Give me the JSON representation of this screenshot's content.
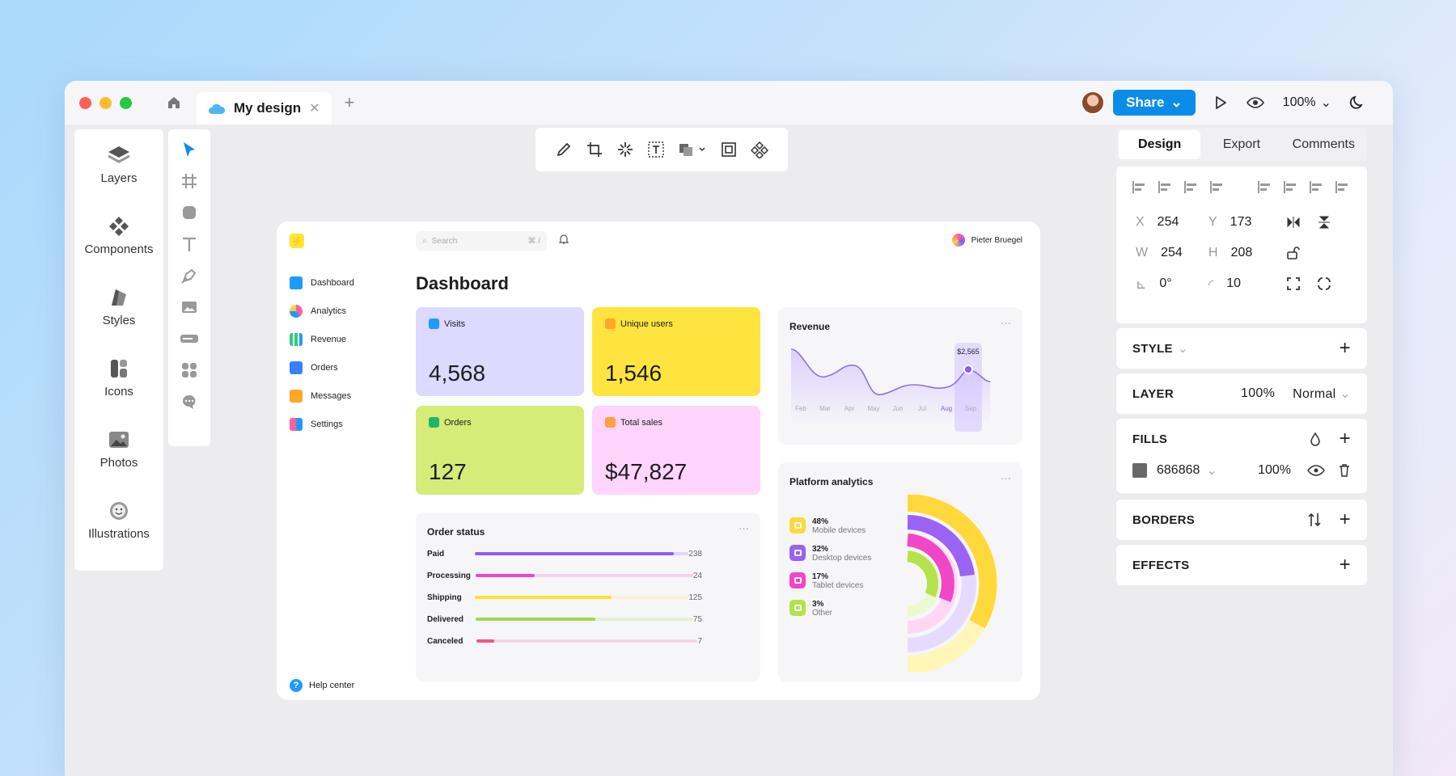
{
  "app": {
    "tab_title": "My design",
    "zoom": "100%",
    "share_label": "Share"
  },
  "leftnav": [
    {
      "label": "Layers"
    },
    {
      "label": "Components"
    },
    {
      "label": "Styles"
    },
    {
      "label": "Icons"
    },
    {
      "label": "Photos"
    },
    {
      "label": "Illustrations"
    }
  ],
  "dash": {
    "search_placeholder": "Search",
    "search_shortcut": "⌘ /",
    "user": "Pieter Bruegel",
    "title": "Dashboard",
    "sidebar": [
      "Dashboard",
      "Analytics",
      "Revenue",
      "Orders",
      "Messages",
      "Settings"
    ],
    "help": "Help center",
    "cards": [
      {
        "label": "Visits",
        "value": "4,568",
        "color": "#ddd9ff"
      },
      {
        "label": "Unique users",
        "value": "1,546",
        "color": "#ffe43f"
      },
      {
        "label": "Orders",
        "value": "127",
        "color": "#d6eb78"
      },
      {
        "label": "Total sales",
        "value": "$47,827",
        "color": "#ffd4fd"
      }
    ],
    "order_status": {
      "title": "Order status",
      "rows": [
        {
          "name": "Paid",
          "count": "238",
          "fraction": 0.93,
          "color": "#8b5cf6"
        },
        {
          "name": "Processing",
          "count": "24",
          "fraction": 0.27,
          "color": "#ee46c8"
        },
        {
          "name": "Shipping",
          "count": "125",
          "fraction": 0.64,
          "color": "#fde132"
        },
        {
          "name": "Delivered",
          "count": "75",
          "fraction": 0.55,
          "color": "#a3d64a"
        },
        {
          "name": "Canceled",
          "count": "7",
          "fraction": 0.08,
          "color": "#f0567e"
        }
      ]
    },
    "revenue": {
      "title": "Revenue",
      "months": [
        "Feb",
        "Mar",
        "Apr",
        "May",
        "Jun",
        "Jul",
        "Aug",
        "Sep"
      ],
      "highlight": "Aug",
      "tooltip": "$2,565"
    },
    "platform": {
      "title": "Platform analytics",
      "items": [
        {
          "pct": "48%",
          "label": "Mobile devices",
          "color": "#ffd93b"
        },
        {
          "pct": "32%",
          "label": "Desktop devices",
          "color": "#9a62f5"
        },
        {
          "pct": "17%",
          "label": "Tablet devices",
          "color": "#f046c8"
        },
        {
          "pct": "3%",
          "label": "Other",
          "color": "#b4e24d"
        }
      ]
    }
  },
  "right": {
    "tabs": [
      "Design",
      "Export",
      "Comments"
    ],
    "x": "254",
    "y": "173",
    "w": "254",
    "h": "208",
    "angle": "0°",
    "radius": "10",
    "lbl_x": "X",
    "lbl_y": "Y",
    "lbl_w": "W",
    "lbl_h": "H",
    "style": "STYLE",
    "layer": "LAYER",
    "layer_opacity": "100%",
    "layer_mode": "Normal",
    "fills": "FILLS",
    "fill_hex": "686868",
    "fill_opacity": "100%",
    "borders": "BORDERS",
    "effects": "EFFECTS"
  }
}
